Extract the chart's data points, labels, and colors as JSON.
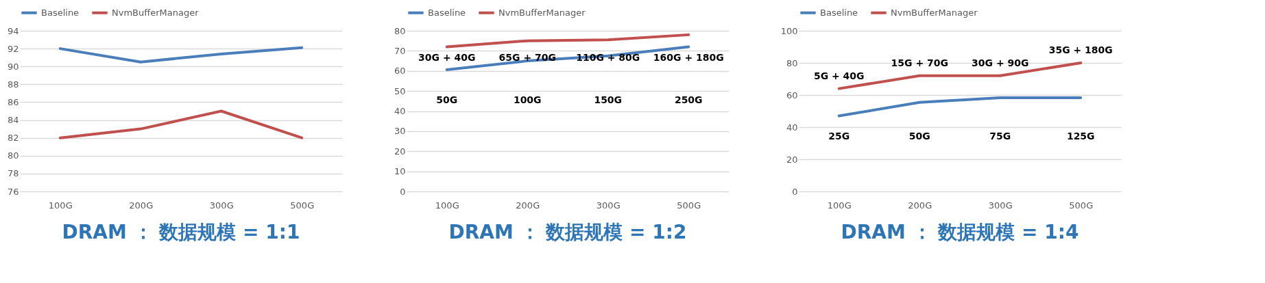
{
  "chart_data": [
    {
      "type": "line",
      "title": "DRAM ： 数据规模 = 1:1",
      "categories": [
        "100G",
        "200G",
        "300G",
        "500G"
      ],
      "ylim": [
        76,
        94
      ],
      "yticks": [
        76,
        78,
        80,
        82,
        84,
        86,
        88,
        90,
        92,
        94
      ],
      "grid": "y",
      "legend": "top",
      "marker": "none",
      "line_style": "solid",
      "series": [
        {
          "name": "Baseline",
          "color": "#4a7ebb",
          "values": [
            92,
            90.5,
            91.4,
            92.1
          ]
        },
        {
          "name": "NvmBufferManager",
          "color": "#c0504d",
          "values": [
            82,
            83,
            85,
            82
          ]
        }
      ]
    },
    {
      "type": "line",
      "title": "DRAM ： 数据规模 = 1:2",
      "categories": [
        "100G",
        "200G",
        "300G",
        "500G"
      ],
      "ylim": [
        0,
        80
      ],
      "yticks": [
        0,
        10,
        20,
        30,
        40,
        50,
        60,
        70,
        80
      ],
      "grid": "y",
      "legend": "top",
      "marker": "none",
      "line_style": "solid",
      "series": [
        {
          "name": "Baseline",
          "color": "#4a7ebb",
          "values": [
            60.6,
            65,
            67.5,
            72
          ]
        },
        {
          "name": "NvmBufferManager",
          "color": "#c0504d",
          "values": [
            72,
            75,
            75.5,
            78
          ]
        }
      ],
      "annotations": [
        "30G + 40G",
        "65G + 70G",
        "110G + 80G",
        "160G + 180G",
        "50G",
        "100G",
        "150G",
        "250G"
      ]
    },
    {
      "type": "line",
      "title": "DRAM ： 数据规模 = 1:4",
      "categories": [
        "100G",
        "200G",
        "300G",
        "500G"
      ],
      "ylim": [
        0,
        100
      ],
      "yticks": [
        0,
        20,
        40,
        60,
        80,
        100
      ],
      "grid": "y",
      "legend": "top",
      "marker": "none",
      "line_style": "solid",
      "series": [
        {
          "name": "Baseline",
          "color": "#4a7ebb",
          "values": [
            47,
            55.4,
            58.3,
            58.3
          ]
        },
        {
          "name": "NvmBufferManager",
          "color": "#c0504d",
          "values": [
            64,
            72,
            72,
            80
          ]
        }
      ],
      "annotations": [
        "5G + 40G",
        "15G + 70G",
        "30G + 90G",
        "35G + 180G",
        "25G",
        "50G",
        "75G",
        "125G"
      ]
    }
  ]
}
